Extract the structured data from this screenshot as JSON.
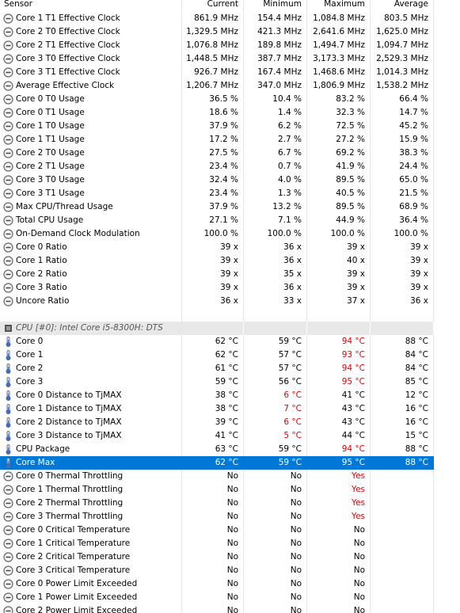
{
  "header": [
    "Sensor",
    "Current",
    "Minimum",
    "Maximum",
    "Average"
  ],
  "groups": [
    {
      "rows": [
        {
          "cells": [
            "Core 1 T1 Effective Clock",
            "861.9 MHz",
            "154.4 MHz",
            "1,084.8 MHz",
            "803.5 MHz"
          ]
        },
        {
          "cells": [
            "Core 2 T0 Effective Clock",
            "1,329.5 MHz",
            "421.3 MHz",
            "2,641.6 MHz",
            "1,625.0 MHz"
          ]
        },
        {
          "cells": [
            "Core 2 T1 Effective Clock",
            "1,076.8 MHz",
            "189.8 MHz",
            "1,494.7 MHz",
            "1,094.7 MHz"
          ]
        },
        {
          "cells": [
            "Core 3 T0 Effective Clock",
            "1,448.5 MHz",
            "387.7 MHz",
            "3,173.3 MHz",
            "2,529.3 MHz"
          ]
        },
        {
          "cells": [
            "Core 3 T1 Effective Clock",
            "926.7 MHz",
            "167.4 MHz",
            "1,468.6 MHz",
            "1,014.3 MHz"
          ]
        },
        {
          "cells": [
            "Average Effective Clock",
            "1,206.7 MHz",
            "347.0 MHz",
            "1,806.9 MHz",
            "1,538.2 MHz"
          ]
        },
        {
          "cells": [
            "Core 0 T0 Usage",
            "36.5 %",
            "10.4 %",
            "83.2 %",
            "66.4 %"
          ]
        },
        {
          "cells": [
            "Core 0 T1 Usage",
            "18.6 %",
            "1.4 %",
            "32.3 %",
            "14.7 %"
          ]
        },
        {
          "cells": [
            "Core 1 T0 Usage",
            "37.9 %",
            "6.2 %",
            "72.5 %",
            "45.2 %"
          ]
        },
        {
          "cells": [
            "Core 1 T1 Usage",
            "17.2 %",
            "2.7 %",
            "27.2 %",
            "15.9 %"
          ]
        },
        {
          "cells": [
            "Core 2 T0 Usage",
            "27.5 %",
            "6.7 %",
            "69.2 %",
            "38.3 %"
          ]
        },
        {
          "cells": [
            "Core 2 T1 Usage",
            "23.4 %",
            "0.7 %",
            "41.9 %",
            "24.4 %"
          ]
        },
        {
          "cells": [
            "Core 3 T0 Usage",
            "32.4 %",
            "4.0 %",
            "89.5 %",
            "65.0 %"
          ]
        },
        {
          "cells": [
            "Core 3 T1 Usage",
            "23.4 %",
            "1.3 %",
            "40.5 %",
            "21.5 %"
          ]
        },
        {
          "cells": [
            "Max CPU/Thread Usage",
            "37.9 %",
            "13.2 %",
            "89.5 %",
            "68.9 %"
          ]
        },
        {
          "cells": [
            "Total CPU Usage",
            "27.1 %",
            "7.1 %",
            "44.9 %",
            "36.4 %"
          ]
        },
        {
          "cells": [
            "On-Demand Clock Modulation",
            "100.0 %",
            "100.0 %",
            "100.0 %",
            "100.0 %"
          ]
        },
        {
          "cells": [
            "Core 0 Ratio",
            "39 x",
            "36 x",
            "39 x",
            "39 x"
          ]
        },
        {
          "cells": [
            "Core 1 Ratio",
            "39 x",
            "36 x",
            "40 x",
            "39 x"
          ]
        },
        {
          "cells": [
            "Core 2 Ratio",
            "39 x",
            "35 x",
            "39 x",
            "39 x"
          ]
        },
        {
          "cells": [
            "Core 3 Ratio",
            "39 x",
            "36 x",
            "39 x",
            "39 x"
          ]
        },
        {
          "cells": [
            "Uncore Ratio",
            "36 x",
            "33 x",
            "37 x",
            "36 x"
          ]
        }
      ]
    },
    {
      "title": "CPU [#0]: Intel Core i5-8300H: DTS",
      "temperatures": [
        {
          "cells": [
            "Core 0",
            "62 °C",
            "59 °C",
            "94 °C",
            "88 °C"
          ],
          "alerts": [
            3
          ]
        },
        {
          "cells": [
            "Core 1",
            "62 °C",
            "57 °C",
            "93 °C",
            "84 °C"
          ],
          "alerts": [
            3
          ]
        },
        {
          "cells": [
            "Core 2",
            "61 °C",
            "57 °C",
            "94 °C",
            "84 °C"
          ],
          "alerts": [
            3
          ]
        },
        {
          "cells": [
            "Core 3",
            "59 °C",
            "56 °C",
            "95 °C",
            "85 °C"
          ],
          "alerts": [
            3
          ]
        },
        {
          "cells": [
            "Core 0 Distance to TjMAX",
            "38 °C",
            "6 °C",
            "41 °C",
            "12 °C"
          ],
          "alerts": [
            2
          ]
        },
        {
          "cells": [
            "Core 1 Distance to TjMAX",
            "38 °C",
            "7 °C",
            "43 °C",
            "16 °C"
          ],
          "alerts": [
            2
          ]
        },
        {
          "cells": [
            "Core 2 Distance to TjMAX",
            "39 °C",
            "6 °C",
            "43 °C",
            "16 °C"
          ],
          "alerts": [
            2
          ]
        },
        {
          "cells": [
            "Core 3 Distance to TjMAX",
            "41 °C",
            "5 °C",
            "44 °C",
            "15 °C"
          ],
          "alerts": [
            2
          ]
        },
        {
          "cells": [
            "CPU Package",
            "63 °C",
            "59 °C",
            "94 °C",
            "88 °C"
          ],
          "alerts": [
            3
          ]
        },
        {
          "cells": [
            "Core Max",
            "62 °C",
            "59 °C",
            "95 °C",
            "88 °C"
          ],
          "selected": true
        }
      ],
      "states": [
        {
          "cells": [
            "Core 0 Thermal Throttling",
            "No",
            "No",
            "Yes"
          ],
          "alerts": [
            3
          ]
        },
        {
          "cells": [
            "Core 1 Thermal Throttling",
            "No",
            "No",
            "Yes"
          ],
          "alerts": [
            3
          ]
        },
        {
          "cells": [
            "Core 2 Thermal Throttling",
            "No",
            "No",
            "Yes"
          ],
          "alerts": [
            3
          ]
        },
        {
          "cells": [
            "Core 3 Thermal Throttling",
            "No",
            "No",
            "Yes"
          ],
          "alerts": [
            3
          ]
        },
        {
          "cells": [
            "Core 0 Critical Temperature",
            "No",
            "No",
            "No"
          ]
        },
        {
          "cells": [
            "Core 1 Critical Temperature",
            "No",
            "No",
            "No"
          ]
        },
        {
          "cells": [
            "Core 2 Critical Temperature",
            "No",
            "No",
            "No"
          ]
        },
        {
          "cells": [
            "Core 3 Critical Temperature",
            "No",
            "No",
            "No"
          ]
        },
        {
          "cells": [
            "Core 0 Power Limit Exceeded",
            "No",
            "No",
            "No"
          ]
        },
        {
          "cells": [
            "Core 1 Power Limit Exceeded",
            "No",
            "No",
            "No"
          ]
        },
        {
          "cells": [
            "Core 2 Power Limit Exceeded",
            "No",
            "No",
            "No"
          ]
        }
      ]
    }
  ]
}
